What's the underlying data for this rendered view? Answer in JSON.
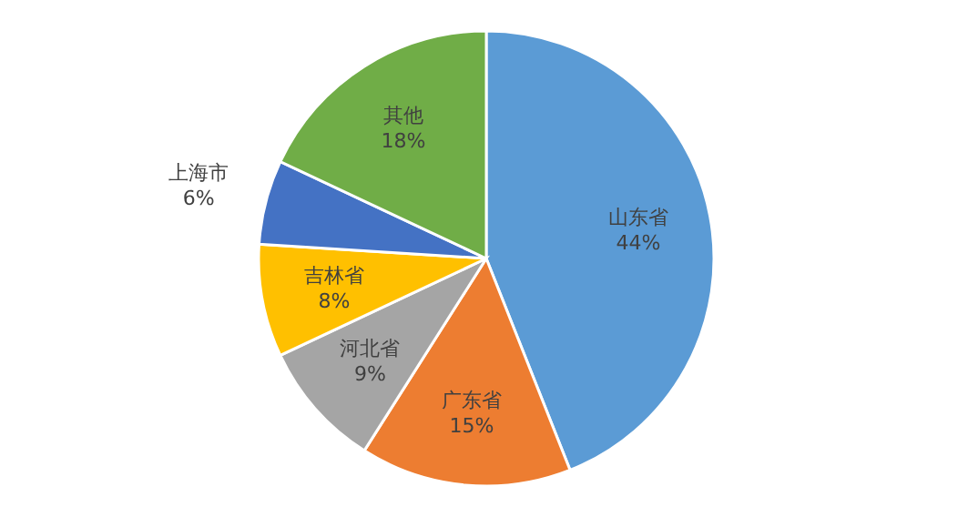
{
  "chart_data": {
    "type": "pie",
    "categories": [
      "山东省",
      "广东省",
      "河北省",
      "吉林省",
      "上海市",
      "其他"
    ],
    "values": [
      44,
      15,
      9,
      8,
      6,
      18
    ],
    "value_labels": [
      "44%",
      "15%",
      "9%",
      "8%",
      "6%",
      "18%"
    ],
    "colors": [
      "#5b9bd5",
      "#ed7d31",
      "#a5a5a5",
      "#ffc000",
      "#4472c4",
      "#70ad47"
    ]
  }
}
